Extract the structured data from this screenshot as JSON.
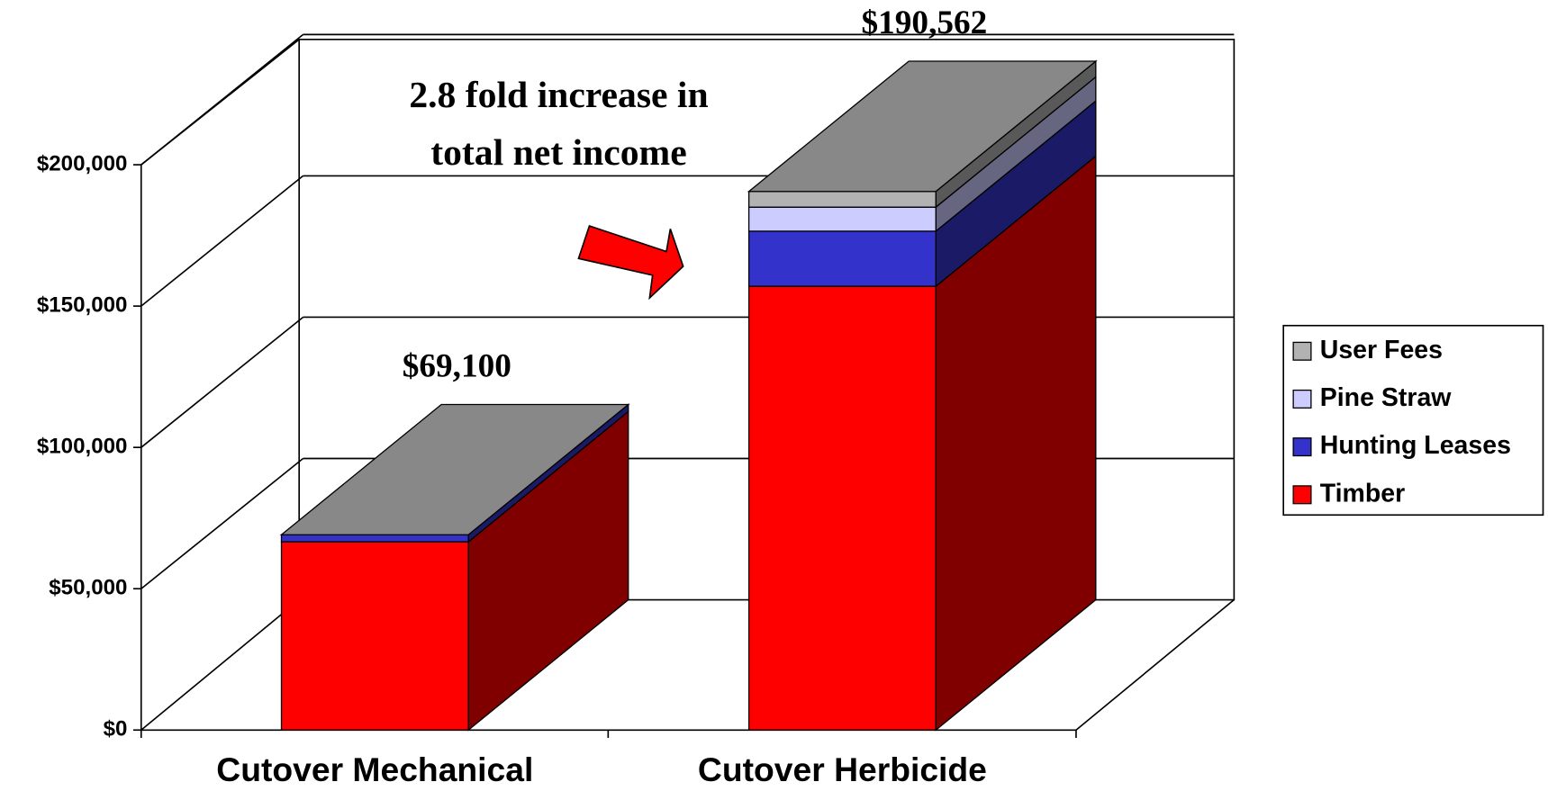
{
  "chart_data": {
    "type": "bar3d_stacked",
    "annotation": [
      "2.8 fold increase in",
      "total net income"
    ],
    "categories": [
      "Cutover Mechanical",
      "Cutover Herbicide"
    ],
    "series": [
      {
        "name": "Timber",
        "color": "#ff0000",
        "values": [
          66600,
          157000
        ]
      },
      {
        "name": "Hunting Leases",
        "color": "#3333cc",
        "values": [
          2500,
          19500
        ]
      },
      {
        "name": "Pine Straw",
        "color": "#ccccff",
        "values": [
          0,
          8500
        ]
      },
      {
        "name": "User Fees",
        "color": "#b2b2b2",
        "values": [
          0,
          5562
        ]
      }
    ],
    "totals": [
      69100,
      190562
    ],
    "total_labels": [
      "$69,100",
      "$190,562"
    ],
    "ylim": [
      0,
      200000
    ],
    "yticks": [
      {
        "value": 0,
        "label": "$0"
      },
      {
        "value": 50000,
        "label": "$50,000"
      },
      {
        "value": 100000,
        "label": "$100,000"
      },
      {
        "value": 150000,
        "label": "$150,000"
      },
      {
        "value": 200000,
        "label": "$200,000"
      }
    ],
    "grid": true,
    "legend": "right"
  }
}
